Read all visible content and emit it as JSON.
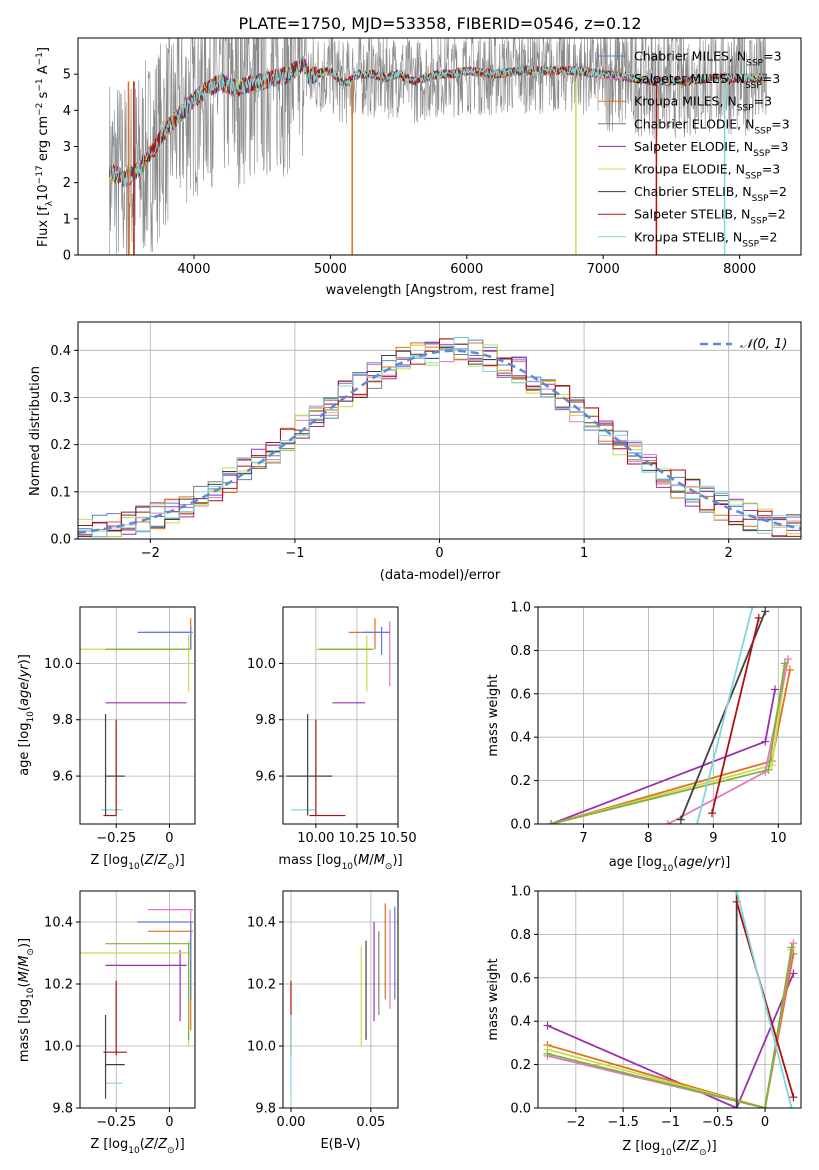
{
  "title": "PLATE=1750, MJD=53358, FIBERID=0546, z=0.12",
  "colors": {
    "chabrier_miles": "#5b7fd1",
    "salpeter_miles": "#e377c2",
    "kroupa_miles": "#e3701a",
    "chabrier_elodie": "#7f7f7f",
    "salpeter_elodie": "#9b30b0",
    "kroupa_elodie": "#c8dc50",
    "chabrier_stelib": "#404040",
    "salpeter_stelib": "#b01010",
    "kroupa_stelib": "#7fd8dc",
    "green": "#7db33a",
    "normal": "#5b8bd6"
  },
  "chart_data": [
    {
      "id": "spectrum",
      "type": "line",
      "title": "PLATE=1750, MJD=53358, FIBERID=0546, z=0.12",
      "xlabel": "wavelength [Angstrom, rest frame]",
      "ylabel": "Flux [f_λ 10^-17 erg cm^-2 s^-1 A^-1]",
      "xlim": [
        3150,
        8450
      ],
      "ylim": [
        0,
        6
      ],
      "xticks": [
        4000,
        5000,
        6000,
        7000,
        8000
      ],
      "yticks": [
        0,
        1,
        2,
        3,
        4,
        5
      ],
      "legend_position": "right",
      "legend": [
        {
          "label": "Chabrier MILES, N_SSP=3",
          "color_key": "chabrier_miles"
        },
        {
          "label": "Salpeter MILES, N_SSP=3",
          "color_key": "salpeter_miles"
        },
        {
          "label": "Kroupa MILES, N_SSP=3",
          "color_key": "kroupa_miles"
        },
        {
          "label": "Chabrier ELODIE, N_SSP=3",
          "color_key": "chabrier_elodie"
        },
        {
          "label": "Salpeter ELODIE, N_SSP=3",
          "color_key": "salpeter_elodie"
        },
        {
          "label": "Kroupa ELODIE, N_SSP=3",
          "color_key": "kroupa_elodie"
        },
        {
          "label": "Chabrier STELIB, N_SSP=2",
          "color_key": "chabrier_stelib"
        },
        {
          "label": "Salpeter STELIB, N_SSP=2",
          "color_key": "salpeter_stelib"
        },
        {
          "label": "Kroupa STELIB, N_SSP=2",
          "color_key": "kroupa_stelib"
        }
      ],
      "model_curve": {
        "x": [
          3380,
          3500,
          3600,
          3700,
          3800,
          3900,
          4000,
          4100,
          4200,
          4300,
          4400,
          4500,
          4600,
          4700,
          4800,
          4850,
          4900,
          5000,
          5100,
          5200,
          5300,
          5400,
          5500,
          5600,
          5700,
          5800,
          5900,
          6000,
          6200,
          6400,
          6600,
          6800,
          7000,
          7200,
          7400,
          7600,
          7800,
          8000,
          8200
        ],
        "y": [
          2.3,
          2.1,
          2.4,
          2.9,
          3.5,
          3.9,
          4.3,
          4.6,
          4.8,
          4.6,
          4.7,
          4.8,
          4.9,
          5.0,
          5.3,
          4.9,
          5.0,
          5.1,
          4.7,
          5.0,
          5.0,
          4.9,
          5.0,
          4.8,
          4.9,
          5.0,
          5.0,
          5.1,
          5.0,
          5.1,
          5.1,
          5.1,
          5.0,
          4.9,
          4.8,
          4.8,
          4.9,
          4.9,
          4.9
        ]
      },
      "dips": [
        {
          "x": 3520,
          "y": 0,
          "color_key": "kroupa_miles"
        },
        {
          "x": 3560,
          "y": 0,
          "color_key": "salpeter_stelib"
        },
        {
          "x": 5160,
          "y": 0,
          "color_key": "kroupa_miles"
        },
        {
          "x": 6800,
          "y": 0,
          "color_key": "kroupa_elodie"
        },
        {
          "x": 7390,
          "y": 0,
          "color_key": "salpeter_stelib"
        },
        {
          "x": 7890,
          "y": 0,
          "color_key": "kroupa_stelib"
        }
      ]
    },
    {
      "id": "histogram",
      "type": "line",
      "xlabel": "(data-model)/error",
      "ylabel": "Normed distribution",
      "xlim": [
        -2.5,
        2.5
      ],
      "ylim": [
        0,
        0.46
      ],
      "xticks": [
        -2,
        -1,
        0,
        1,
        2
      ],
      "yticks": [
        0.0,
        0.1,
        0.2,
        0.3,
        0.4
      ],
      "legend_position": "top-right",
      "legend": [
        {
          "label": "𝒩(0, 1)",
          "color_key": "normal"
        }
      ],
      "bin_width": 0.1,
      "series_keys": [
        "chabrier_miles",
        "salpeter_miles",
        "kroupa_miles",
        "chabrier_elodie",
        "salpeter_elodie",
        "kroupa_elodie",
        "chabrier_stelib",
        "salpeter_stelib",
        "kroupa_stelib"
      ]
    },
    {
      "id": "age_vs_Z",
      "type": "scatter",
      "xlabel": "Z [log10(Z/Z⊙)]",
      "ylabel": "age  [log10(age/yr)]",
      "xlim": [
        -0.42,
        0.12
      ],
      "ylim": [
        9.43,
        10.2
      ],
      "xticks": [
        -0.25,
        0.0
      ],
      "yticks": [
        9.6,
        9.8,
        10.0
      ],
      "points": [
        {
          "x": -0.3,
          "y": 9.48,
          "xlo": -0.32,
          "xhi": -0.22,
          "ylo": 9.48,
          "yhi": 9.48,
          "color_key": "kroupa_stelib"
        },
        {
          "x": -0.25,
          "y": 9.46,
          "xlo": -0.31,
          "xhi": -0.25,
          "ylo": 9.46,
          "yhi": 9.8,
          "color_key": "salpeter_stelib"
        },
        {
          "x": -0.3,
          "y": 9.6,
          "xlo": -0.3,
          "xhi": -0.21,
          "ylo": 9.46,
          "yhi": 9.82,
          "color_key": "chabrier_stelib"
        },
        {
          "x": 0.05,
          "y": 9.86,
          "xlo": -0.3,
          "xhi": 0.08,
          "ylo": 9.86,
          "yhi": 9.86,
          "color_key": "salpeter_elodie"
        },
        {
          "x": 0.09,
          "y": 10.05,
          "xlo": -0.42,
          "xhi": 0.1,
          "ylo": 9.9,
          "yhi": 10.1,
          "color_key": "kroupa_elodie"
        },
        {
          "x": 0.09,
          "y": 10.05,
          "xlo": -0.3,
          "xhi": 0.1,
          "ylo": 10.05,
          "yhi": 10.05,
          "color_key": "green"
        },
        {
          "x": 0.1,
          "y": 10.11,
          "xlo": -0.1,
          "xhi": 0.11,
          "ylo": 10.05,
          "yhi": 10.16,
          "color_key": "kroupa_miles"
        },
        {
          "x": 0.1,
          "y": 10.11,
          "xlo": -0.12,
          "xhi": 0.11,
          "ylo": 10.05,
          "yhi": 10.11,
          "color_key": "salpeter_miles"
        },
        {
          "x": 0.1,
          "y": 10.11,
          "xlo": -0.15,
          "xhi": 0.1,
          "ylo": 10.05,
          "yhi": 10.13,
          "color_key": "chabrier_miles"
        }
      ]
    },
    {
      "id": "age_vs_mass",
      "type": "scatter",
      "xlabel": "mass [log10(M/M⊙)]",
      "ylabel": "",
      "xlim": [
        9.8,
        10.5
      ],
      "ylim": [
        9.43,
        10.2
      ],
      "xticks": [
        10.0,
        10.25,
        10.5
      ],
      "xtick_labels": [
        "10.00",
        "10.25",
        "10.50"
      ],
      "yticks": [
        9.6,
        9.8,
        10.0
      ],
      "points": [
        {
          "x": 9.85,
          "y": 9.48,
          "xlo": 9.85,
          "xhi": 10.0,
          "ylo": 9.48,
          "yhi": 9.48,
          "color_key": "kroupa_stelib"
        },
        {
          "x": 10.0,
          "y": 9.46,
          "xlo": 9.96,
          "xhi": 10.18,
          "ylo": 9.46,
          "yhi": 9.8,
          "color_key": "salpeter_stelib"
        },
        {
          "x": 9.95,
          "y": 9.6,
          "xlo": 9.82,
          "xhi": 10.1,
          "ylo": 9.46,
          "yhi": 9.82,
          "color_key": "chabrier_stelib"
        },
        {
          "x": 10.3,
          "y": 9.86,
          "xlo": 10.1,
          "xhi": 10.3,
          "ylo": 9.86,
          "yhi": 9.86,
          "color_key": "salpeter_elodie"
        },
        {
          "x": 10.31,
          "y": 10.05,
          "xlo": 10.0,
          "xhi": 10.35,
          "ylo": 9.9,
          "yhi": 10.1,
          "color_key": "kroupa_elodie"
        },
        {
          "x": 10.32,
          "y": 10.05,
          "xlo": 10.02,
          "xhi": 10.35,
          "ylo": 10.05,
          "yhi": 10.05,
          "color_key": "green"
        },
        {
          "x": 10.36,
          "y": 10.11,
          "xlo": 10.2,
          "xhi": 10.38,
          "ylo": 10.05,
          "yhi": 10.16,
          "color_key": "kroupa_miles"
        },
        {
          "x": 10.45,
          "y": 10.11,
          "xlo": 10.3,
          "xhi": 10.45,
          "ylo": 9.92,
          "yhi": 10.15,
          "color_key": "salpeter_miles"
        },
        {
          "x": 10.4,
          "y": 10.11,
          "xlo": 10.28,
          "xhi": 10.45,
          "ylo": 10.03,
          "yhi": 10.13,
          "color_key": "chabrier_miles"
        }
      ]
    },
    {
      "id": "mass_vs_Z",
      "type": "scatter",
      "xlabel": "Z [log10(Z/Z⊙)]",
      "ylabel": "mass [log10(M/M⊙)]",
      "xlim": [
        -0.42,
        0.12
      ],
      "ylim": [
        9.8,
        10.5
      ],
      "xticks": [
        -0.25,
        0.0
      ],
      "yticks": [
        9.8,
        10.0,
        10.2,
        10.4
      ],
      "points": [
        {
          "x": -0.3,
          "y": 9.88,
          "xlo": -0.3,
          "xhi": -0.22,
          "ylo": 9.88,
          "yhi": 9.88,
          "color_key": "kroupa_stelib"
        },
        {
          "x": -0.25,
          "y": 9.98,
          "xlo": -0.31,
          "xhi": -0.2,
          "ylo": 9.97,
          "yhi": 10.21,
          "color_key": "salpeter_stelib"
        },
        {
          "x": -0.3,
          "y": 9.94,
          "xlo": -0.3,
          "xhi": -0.21,
          "ylo": 9.83,
          "yhi": 10.1,
          "color_key": "chabrier_stelib"
        },
        {
          "x": 0.05,
          "y": 10.26,
          "xlo": -0.3,
          "xhi": 0.08,
          "ylo": 10.08,
          "yhi": 10.31,
          "color_key": "salpeter_elodie"
        },
        {
          "x": 0.09,
          "y": 10.3,
          "xlo": -0.42,
          "xhi": 0.1,
          "ylo": 10.0,
          "yhi": 10.34,
          "color_key": "kroupa_elodie"
        },
        {
          "x": 0.09,
          "y": 10.33,
          "xlo": -0.3,
          "xhi": 0.1,
          "ylo": 10.02,
          "yhi": 10.33,
          "color_key": "green"
        },
        {
          "x": 0.1,
          "y": 10.37,
          "xlo": -0.1,
          "xhi": 0.11,
          "ylo": 10.05,
          "yhi": 10.37,
          "color_key": "kroupa_miles"
        },
        {
          "x": 0.1,
          "y": 10.44,
          "xlo": -0.1,
          "xhi": 0.11,
          "ylo": 10.22,
          "yhi": 10.44,
          "color_key": "salpeter_miles"
        },
        {
          "x": 0.1,
          "y": 10.4,
          "xlo": -0.15,
          "xhi": 0.11,
          "ylo": 10.15,
          "yhi": 10.4,
          "color_key": "chabrier_miles"
        }
      ]
    },
    {
      "id": "mass_vs_ebv",
      "type": "scatter",
      "xlabel": "E(B-V)",
      "ylabel": "",
      "xlim": [
        -0.005,
        0.067
      ],
      "ylim": [
        9.8,
        10.5
      ],
      "xticks": [
        0.0,
        0.05
      ],
      "xtick_labels": [
        "0.00",
        "0.05"
      ],
      "yticks": [
        9.8,
        10.0,
        10.2,
        10.4
      ],
      "points": [
        {
          "x": 0.0,
          "y": 9.98,
          "ylo": 9.97,
          "yhi": 10.21,
          "color_key": "salpeter_stelib"
        },
        {
          "x": 0.0,
          "y": 9.88,
          "ylo": 9.83,
          "yhi": 10.1,
          "color_key": "kroupa_stelib"
        },
        {
          "x": 0.044,
          "y": 10.18,
          "ylo": 10.0,
          "yhi": 10.32,
          "color_key": "kroupa_elodie"
        },
        {
          "x": 0.047,
          "y": 10.2,
          "ylo": 10.02,
          "yhi": 10.34,
          "color_key": "chabrier_stelib"
        },
        {
          "x": 0.052,
          "y": 10.24,
          "ylo": 10.08,
          "yhi": 10.4,
          "color_key": "salpeter_elodie"
        },
        {
          "x": 0.055,
          "y": 10.22,
          "ylo": 10.1,
          "yhi": 10.37,
          "color_key": "chabrier_elodie"
        },
        {
          "x": 0.059,
          "y": 10.3,
          "ylo": 10.15,
          "yhi": 10.46,
          "color_key": "kroupa_miles"
        },
        {
          "x": 0.062,
          "y": 10.28,
          "ylo": 10.12,
          "yhi": 10.44,
          "color_key": "salpeter_miles"
        },
        {
          "x": 0.065,
          "y": 10.3,
          "ylo": 10.15,
          "yhi": 10.45,
          "color_key": "chabrier_miles"
        }
      ]
    },
    {
      "id": "weight_vs_age",
      "type": "line",
      "xlabel": "age  [log10(age/yr)]",
      "ylabel": "mass weight",
      "xlim": [
        6.3,
        10.35
      ],
      "ylim": [
        0,
        1.0
      ],
      "xticks": [
        7,
        8,
        9,
        10
      ],
      "yticks": [
        0.0,
        0.2,
        0.4,
        0.6,
        0.8,
        1.0
      ],
      "series": [
        {
          "color_key": "salpeter_elodie",
          "x": [
            6.5,
            9.8,
            9.95
          ],
          "y": [
            0.0,
            0.38,
            0.62
          ]
        },
        {
          "color_key": "kroupa_miles",
          "x": [
            6.5,
            9.9,
            10.18
          ],
          "y": [
            0.0,
            0.29,
            0.71
          ]
        },
        {
          "color_key": "kroupa_elodie",
          "x": [
            6.5,
            9.9,
            10.12
          ],
          "y": [
            0.0,
            0.27,
            0.73
          ]
        },
        {
          "color_key": "salpeter_miles",
          "x": [
            8.3,
            9.8,
            10.15
          ],
          "y": [
            0.0,
            0.24,
            0.76
          ]
        },
        {
          "color_key": "green",
          "x": [
            6.5,
            9.85,
            10.1
          ],
          "y": [
            0.0,
            0.25,
            0.74
          ]
        },
        {
          "color_key": "chabrier_stelib",
          "x": [
            8.5,
            9.8
          ],
          "y": [
            0.02,
            0.98
          ]
        },
        {
          "color_key": "salpeter_stelib",
          "x": [
            8.98,
            9.7
          ],
          "y": [
            0.05,
            0.95
          ]
        },
        {
          "color_key": "kroupa_stelib",
          "x": [
            8.75,
            9.6
          ],
          "y": [
            0.0,
            1.0
          ]
        }
      ]
    },
    {
      "id": "weight_vs_Z",
      "type": "line",
      "xlabel": "Z [log10(Z/Z⊙)]",
      "ylabel": "mass weight",
      "xlim": [
        -2.4,
        0.38
      ],
      "ylim": [
        0,
        1.0
      ],
      "xticks": [
        -2.0,
        -1.5,
        -1.0,
        -0.5,
        0.0
      ],
      "yticks": [
        0.0,
        0.2,
        0.4,
        0.6,
        0.8,
        1.0
      ],
      "series": [
        {
          "color_key": "salpeter_elodie",
          "x": [
            -2.3,
            -0.3,
            0.3
          ],
          "y": [
            0.38,
            0.0,
            0.62
          ]
        },
        {
          "color_key": "kroupa_miles",
          "x": [
            -2.3,
            0.0,
            0.3
          ],
          "y": [
            0.29,
            0.0,
            0.71
          ]
        },
        {
          "color_key": "kroupa_elodie",
          "x": [
            -2.3,
            0.0,
            0.28
          ],
          "y": [
            0.27,
            0.0,
            0.73
          ]
        },
        {
          "color_key": "salpeter_miles",
          "x": [
            -2.3,
            0.0,
            0.3
          ],
          "y": [
            0.24,
            0.0,
            0.76
          ]
        },
        {
          "color_key": "green",
          "x": [
            -2.3,
            0.0,
            0.28
          ],
          "y": [
            0.25,
            0.0,
            0.74
          ]
        },
        {
          "color_key": "chabrier_stelib",
          "x": [
            -0.3,
            -0.3
          ],
          "y": [
            1.0,
            0.0
          ]
        },
        {
          "color_key": "salpeter_stelib",
          "x": [
            -0.3,
            0.3
          ],
          "y": [
            0.95,
            0.05
          ]
        },
        {
          "color_key": "kroupa_stelib",
          "x": [
            -0.3,
            0.28
          ],
          "y": [
            1.0,
            0.0
          ]
        }
      ]
    }
  ]
}
